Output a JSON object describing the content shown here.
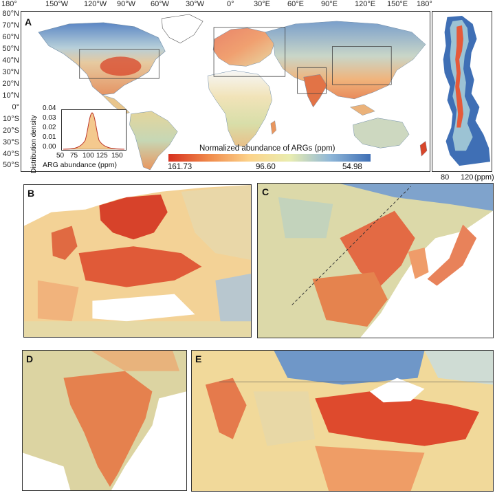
{
  "panels": {
    "a": "A",
    "b": "B",
    "c": "C",
    "d": "D",
    "e": "E"
  },
  "longitude_labels": [
    "180°",
    "150°W",
    "120°W",
    "90°W",
    "60°W",
    "30°W",
    "0°",
    "30°E",
    "60°E",
    "90°E",
    "120°E",
    "150°E",
    "180°"
  ],
  "latitude_labels": [
    "80°N",
    "70°N",
    "60°N",
    "50°N",
    "40°N",
    "30°N",
    "20°N",
    "10°N",
    "0°",
    "10°S",
    "20°S",
    "30°S",
    "40°S",
    "50°S"
  ],
  "legend": {
    "title": "Normalized abundance of ARGs (ppm)",
    "max": "161.73",
    "mid": "96.60",
    "min": "54.98",
    "colors": [
      "#d7301f",
      "#f08a4b",
      "#fcd38a",
      "#e9edb0",
      "#8fb7d8",
      "#3f6fb5"
    ]
  },
  "histogram": {
    "ylabel": "Distribution density",
    "xlabel": "ARG abundance (ppm)",
    "yticks": [
      "0.04",
      "0.03",
      "0.02",
      "0.01",
      "0.00"
    ],
    "xticks": [
      "50",
      "75",
      "100",
      "125",
      "150"
    ]
  },
  "latitude_profile": {
    "xticks": [
      "80",
      "120"
    ],
    "unit": "(ppm)"
  }
}
